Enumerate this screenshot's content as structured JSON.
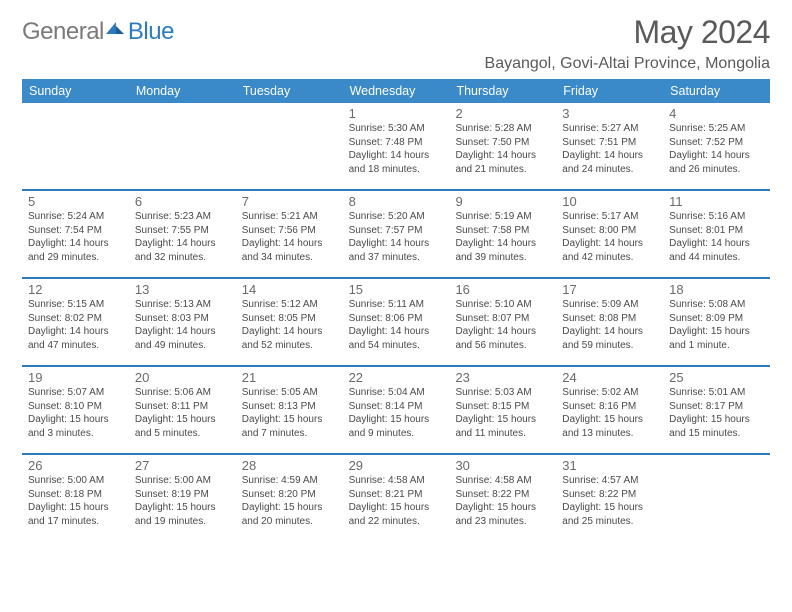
{
  "brand": {
    "part1": "General",
    "part2": "Blue"
  },
  "title": "May 2024",
  "location": "Bayangol, Govi-Altai Province, Mongolia",
  "theme": {
    "header_bg": "#3a89c9",
    "header_fg": "#ffffff",
    "rule_color": "#2f7bbf",
    "text_color": "#4a4a4a",
    "daynum_color": "#6a6a6a",
    "title_color": "#5a5a5a",
    "location_color": "#5a5a5a",
    "background": "#ffffff",
    "day_header_fontsize": 12.5,
    "body_fontsize": 10,
    "title_fontsize": 32,
    "location_fontsize": 16
  },
  "day_headers": [
    "Sunday",
    "Monday",
    "Tuesday",
    "Wednesday",
    "Thursday",
    "Friday",
    "Saturday"
  ],
  "weeks": [
    [
      null,
      null,
      null,
      {
        "n": "1",
        "rise": "5:30 AM",
        "set": "7:48 PM",
        "dl": "Daylight: 14 hours and 18 minutes."
      },
      {
        "n": "2",
        "rise": "5:28 AM",
        "set": "7:50 PM",
        "dl": "Daylight: 14 hours and 21 minutes."
      },
      {
        "n": "3",
        "rise": "5:27 AM",
        "set": "7:51 PM",
        "dl": "Daylight: 14 hours and 24 minutes."
      },
      {
        "n": "4",
        "rise": "5:25 AM",
        "set": "7:52 PM",
        "dl": "Daylight: 14 hours and 26 minutes."
      }
    ],
    [
      {
        "n": "5",
        "rise": "5:24 AM",
        "set": "7:54 PM",
        "dl": "Daylight: 14 hours and 29 minutes."
      },
      {
        "n": "6",
        "rise": "5:23 AM",
        "set": "7:55 PM",
        "dl": "Daylight: 14 hours and 32 minutes."
      },
      {
        "n": "7",
        "rise": "5:21 AM",
        "set": "7:56 PM",
        "dl": "Daylight: 14 hours and 34 minutes."
      },
      {
        "n": "8",
        "rise": "5:20 AM",
        "set": "7:57 PM",
        "dl": "Daylight: 14 hours and 37 minutes."
      },
      {
        "n": "9",
        "rise": "5:19 AM",
        "set": "7:58 PM",
        "dl": "Daylight: 14 hours and 39 minutes."
      },
      {
        "n": "10",
        "rise": "5:17 AM",
        "set": "8:00 PM",
        "dl": "Daylight: 14 hours and 42 minutes."
      },
      {
        "n": "11",
        "rise": "5:16 AM",
        "set": "8:01 PM",
        "dl": "Daylight: 14 hours and 44 minutes."
      }
    ],
    [
      {
        "n": "12",
        "rise": "5:15 AM",
        "set": "8:02 PM",
        "dl": "Daylight: 14 hours and 47 minutes."
      },
      {
        "n": "13",
        "rise": "5:13 AM",
        "set": "8:03 PM",
        "dl": "Daylight: 14 hours and 49 minutes."
      },
      {
        "n": "14",
        "rise": "5:12 AM",
        "set": "8:05 PM",
        "dl": "Daylight: 14 hours and 52 minutes."
      },
      {
        "n": "15",
        "rise": "5:11 AM",
        "set": "8:06 PM",
        "dl": "Daylight: 14 hours and 54 minutes."
      },
      {
        "n": "16",
        "rise": "5:10 AM",
        "set": "8:07 PM",
        "dl": "Daylight: 14 hours and 56 minutes."
      },
      {
        "n": "17",
        "rise": "5:09 AM",
        "set": "8:08 PM",
        "dl": "Daylight: 14 hours and 59 minutes."
      },
      {
        "n": "18",
        "rise": "5:08 AM",
        "set": "8:09 PM",
        "dl": "Daylight: 15 hours and 1 minute."
      }
    ],
    [
      {
        "n": "19",
        "rise": "5:07 AM",
        "set": "8:10 PM",
        "dl": "Daylight: 15 hours and 3 minutes."
      },
      {
        "n": "20",
        "rise": "5:06 AM",
        "set": "8:11 PM",
        "dl": "Daylight: 15 hours and 5 minutes."
      },
      {
        "n": "21",
        "rise": "5:05 AM",
        "set": "8:13 PM",
        "dl": "Daylight: 15 hours and 7 minutes."
      },
      {
        "n": "22",
        "rise": "5:04 AM",
        "set": "8:14 PM",
        "dl": "Daylight: 15 hours and 9 minutes."
      },
      {
        "n": "23",
        "rise": "5:03 AM",
        "set": "8:15 PM",
        "dl": "Daylight: 15 hours and 11 minutes."
      },
      {
        "n": "24",
        "rise": "5:02 AM",
        "set": "8:16 PM",
        "dl": "Daylight: 15 hours and 13 minutes."
      },
      {
        "n": "25",
        "rise": "5:01 AM",
        "set": "8:17 PM",
        "dl": "Daylight: 15 hours and 15 minutes."
      }
    ],
    [
      {
        "n": "26",
        "rise": "5:00 AM",
        "set": "8:18 PM",
        "dl": "Daylight: 15 hours and 17 minutes."
      },
      {
        "n": "27",
        "rise": "5:00 AM",
        "set": "8:19 PM",
        "dl": "Daylight: 15 hours and 19 minutes."
      },
      {
        "n": "28",
        "rise": "4:59 AM",
        "set": "8:20 PM",
        "dl": "Daylight: 15 hours and 20 minutes."
      },
      {
        "n": "29",
        "rise": "4:58 AM",
        "set": "8:21 PM",
        "dl": "Daylight: 15 hours and 22 minutes."
      },
      {
        "n": "30",
        "rise": "4:58 AM",
        "set": "8:22 PM",
        "dl": "Daylight: 15 hours and 23 minutes."
      },
      {
        "n": "31",
        "rise": "4:57 AM",
        "set": "8:22 PM",
        "dl": "Daylight: 15 hours and 25 minutes."
      },
      null
    ]
  ],
  "labels": {
    "sunrise": "Sunrise:",
    "sunset": "Sunset:"
  }
}
